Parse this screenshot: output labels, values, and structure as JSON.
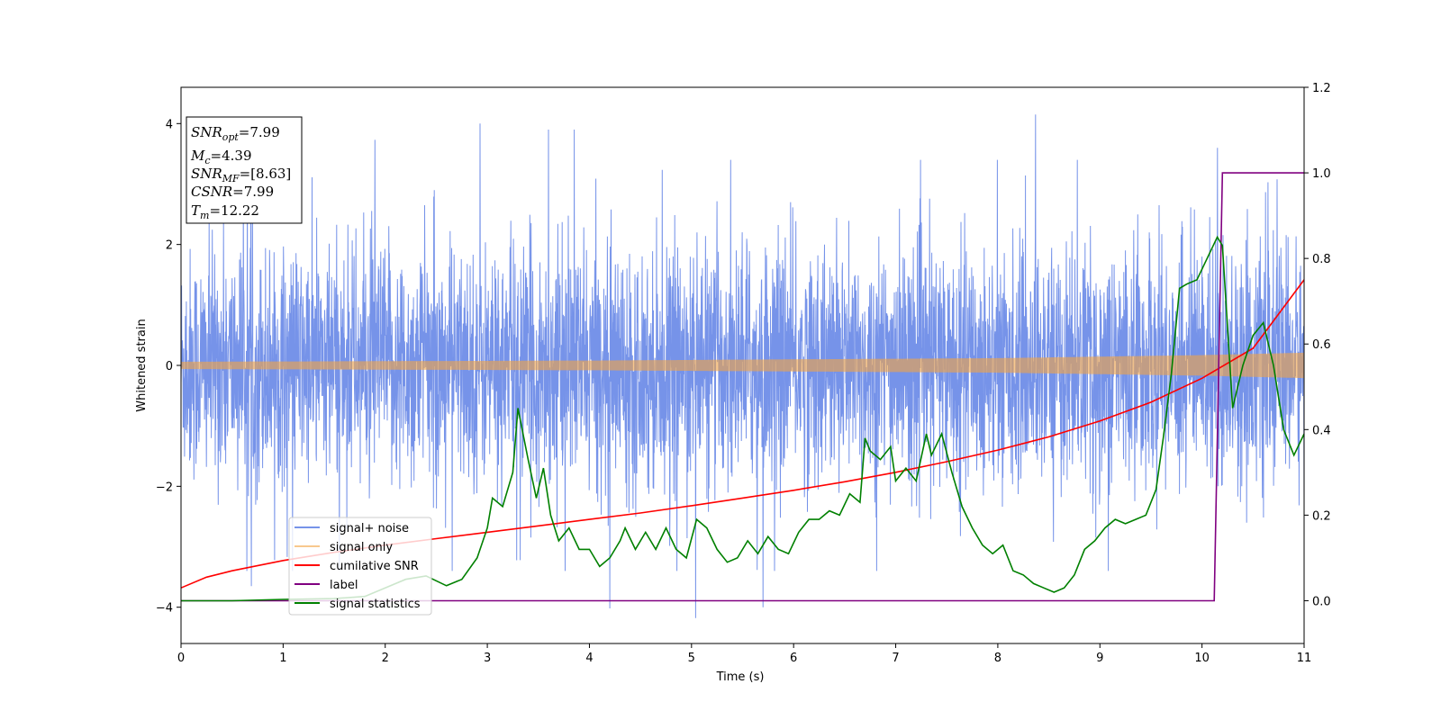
{
  "chart_data": {
    "type": "line",
    "xlabel": "Time (s)",
    "ylabel_left": "Whitened strain",
    "xlim": [
      0,
      11
    ],
    "ylim_left": [
      -4.6,
      4.6
    ],
    "ylim_right": [
      -0.1,
      1.2
    ],
    "x_ticks": [
      "0",
      "1",
      "2",
      "3",
      "4",
      "5",
      "6",
      "7",
      "8",
      "9",
      "10",
      "11"
    ],
    "y_left_ticks": [
      "−4",
      "−2",
      "0",
      "2",
      "4"
    ],
    "y_left_tick_values": [
      -4,
      -2,
      0,
      2,
      4
    ],
    "y_right_ticks": [
      "0.0",
      "0.2",
      "0.4",
      "0.6",
      "0.8",
      "1.0",
      "1.2"
    ],
    "y_right_tick_values": [
      0.0,
      0.2,
      0.4,
      0.6,
      0.8,
      1.0,
      1.2
    ],
    "legend_position": "lower-left",
    "annotation": {
      "snr_opt": {
        "name": "SNR",
        "sub": "opt",
        "value": "=7.99"
      },
      "mc": {
        "name": "M",
        "sub": "c",
        "value": "=4.39"
      },
      "snr_mf": {
        "name": "SNR",
        "sub": "MF",
        "value": "=[8.63]"
      },
      "csnr": {
        "name": "CSNR",
        "value": "=7.99"
      },
      "tm": {
        "name": "T",
        "sub": "m",
        "value": "=12.22"
      }
    },
    "series": [
      {
        "name": "signal+ noise",
        "axis": "left",
        "color": "#4169e1",
        "noise_band_typical": [
          -1.5,
          1.5
        ],
        "extremes": [
          {
            "x": 0.69,
            "y": -3.65
          },
          {
            "x": 1.9,
            "y": 3.73
          },
          {
            "x": 2.93,
            "y": 4.0
          },
          {
            "x": 3.6,
            "y": 3.9
          },
          {
            "x": 3.85,
            "y": 3.9
          },
          {
            "x": 4.2,
            "y": -4.02
          },
          {
            "x": 5.04,
            "y": -4.18
          },
          {
            "x": 5.7,
            "y": -4.0
          },
          {
            "x": 8.37,
            "y": 4.15
          },
          {
            "x": 10.15,
            "y": 3.6
          }
        ]
      },
      {
        "name": "signal only",
        "axis": "left",
        "color": "#f4a442",
        "amplitude": [
          [
            0,
            0.06
          ],
          [
            4,
            0.08
          ],
          [
            8,
            0.12
          ],
          [
            10,
            0.17
          ],
          [
            11,
            0.21
          ]
        ]
      },
      {
        "name": "cumilative SNR",
        "axis": "right",
        "color": "#ff0000",
        "x": [
          0,
          0.25,
          0.5,
          1,
          1.5,
          2,
          2.5,
          3,
          3.5,
          4,
          4.5,
          5,
          5.5,
          6,
          6.5,
          7,
          7.5,
          8,
          8.5,
          9,
          9.5,
          10,
          10.5,
          11
        ],
        "y": [
          0.03,
          0.055,
          0.07,
          0.094,
          0.113,
          0.13,
          0.145,
          0.16,
          0.175,
          0.19,
          0.205,
          0.222,
          0.24,
          0.258,
          0.278,
          0.3,
          0.325,
          0.352,
          0.383,
          0.42,
          0.464,
          0.52,
          0.59,
          0.75
        ]
      },
      {
        "name": "label",
        "axis": "right",
        "color": "#800080",
        "x": [
          0,
          10.12,
          10.2,
          11
        ],
        "y": [
          0,
          0,
          1,
          1
        ]
      },
      {
        "name": "signal statistics",
        "axis": "right",
        "color": "#008000",
        "x": [
          0,
          0.5,
          1,
          1.5,
          1.8,
          2.0,
          2.2,
          2.4,
          2.6,
          2.75,
          2.9,
          3.0,
          3.05,
          3.15,
          3.25,
          3.3,
          3.4,
          3.48,
          3.55,
          3.62,
          3.7,
          3.8,
          3.9,
          4.0,
          4.1,
          4.2,
          4.3,
          4.35,
          4.45,
          4.55,
          4.65,
          4.75,
          4.85,
          4.95,
          5.05,
          5.15,
          5.25,
          5.35,
          5.45,
          5.55,
          5.65,
          5.75,
          5.85,
          5.95,
          6.05,
          6.15,
          6.25,
          6.35,
          6.45,
          6.55,
          6.65,
          6.7,
          6.75,
          6.85,
          6.95,
          7.0,
          7.1,
          7.2,
          7.3,
          7.35,
          7.45,
          7.55,
          7.65,
          7.75,
          7.85,
          7.95,
          8.05,
          8.15,
          8.25,
          8.35,
          8.45,
          8.55,
          8.65,
          8.75,
          8.85,
          8.95,
          9.05,
          9.15,
          9.25,
          9.35,
          9.45,
          9.55,
          9.62,
          9.7,
          9.78,
          9.85,
          9.95,
          10.05,
          10.15,
          10.2,
          10.3,
          10.4,
          10.5,
          10.6,
          10.7,
          10.8,
          10.9,
          11.0
        ],
        "y": [
          0.0,
          0.0,
          0.003,
          0.005,
          0.01,
          0.03,
          0.05,
          0.058,
          0.035,
          0.05,
          0.1,
          0.17,
          0.24,
          0.22,
          0.3,
          0.45,
          0.33,
          0.24,
          0.31,
          0.2,
          0.14,
          0.17,
          0.12,
          0.12,
          0.08,
          0.1,
          0.14,
          0.17,
          0.12,
          0.16,
          0.12,
          0.17,
          0.12,
          0.1,
          0.19,
          0.17,
          0.12,
          0.09,
          0.1,
          0.14,
          0.11,
          0.15,
          0.12,
          0.11,
          0.16,
          0.19,
          0.19,
          0.21,
          0.2,
          0.25,
          0.23,
          0.38,
          0.35,
          0.33,
          0.36,
          0.28,
          0.31,
          0.28,
          0.39,
          0.34,
          0.39,
          0.3,
          0.22,
          0.17,
          0.13,
          0.11,
          0.13,
          0.07,
          0.06,
          0.04,
          0.03,
          0.02,
          0.03,
          0.06,
          0.12,
          0.14,
          0.17,
          0.19,
          0.18,
          0.19,
          0.2,
          0.26,
          0.38,
          0.53,
          0.73,
          0.74,
          0.75,
          0.8,
          0.85,
          0.83,
          0.45,
          0.55,
          0.62,
          0.65,
          0.55,
          0.4,
          0.34,
          0.39
        ]
      }
    ]
  }
}
